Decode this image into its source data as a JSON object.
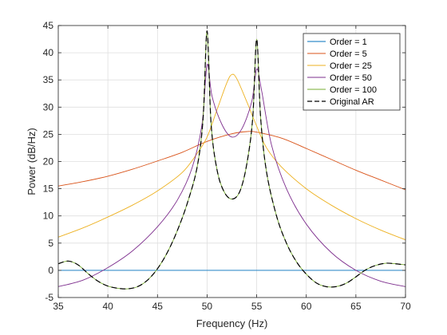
{
  "chart_data": {
    "type": "line",
    "xlabel": "Frequency (Hz)",
    "ylabel": "Power (dB/Hz)",
    "xlim": [
      35,
      70
    ],
    "ylim": [
      -5,
      45
    ],
    "xticks": [
      35,
      40,
      45,
      50,
      55,
      60,
      65,
      70
    ],
    "yticks": [
      -5,
      0,
      5,
      10,
      15,
      20,
      25,
      30,
      35,
      40,
      45
    ],
    "grid": true,
    "legend_position": "top-right",
    "series": [
      {
        "name": "Order = 1",
        "color": "#0072BD",
        "dashed": false,
        "x": [
          35,
          70
        ],
        "y": [
          0,
          0
        ]
      },
      {
        "name": "Order = 5",
        "color": "#D95319",
        "dashed": false,
        "x": [
          35,
          37.5,
          40,
          42.5,
          45,
          47.5,
          50,
          52.5,
          54,
          55,
          57.5,
          60,
          62.5,
          65,
          67.5,
          70
        ],
        "y": [
          15.5,
          16.3,
          17.3,
          18.6,
          20.1,
          21.7,
          23.7,
          25.1,
          25.5,
          25.4,
          24.3,
          22.4,
          20.4,
          18.4,
          16.6,
          14.8
        ]
      },
      {
        "name": "Order = 25",
        "color": "#EDB120",
        "dashed": false,
        "x": [
          35,
          37.5,
          40,
          42.5,
          45,
          47.5,
          49,
          50,
          51,
          52,
          52.5,
          53,
          54,
          55,
          56,
          57.5,
          60,
          62.5,
          65,
          67.5,
          70
        ],
        "y": [
          6.1,
          7.8,
          9.8,
          12.0,
          14.6,
          18.0,
          21.5,
          24.5,
          29.5,
          34.5,
          36.0,
          35.2,
          31.0,
          26.5,
          22.5,
          19.0,
          15.0,
          12.0,
          9.5,
          7.4,
          5.6
        ]
      },
      {
        "name": "Order = 50",
        "color": "#7E2F8E",
        "dashed": false,
        "x": [
          35,
          37.5,
          40,
          42.5,
          45,
          47,
          48.5,
          49.5,
          50,
          50.5,
          51.5,
          52.5,
          53.5,
          54.5,
          55,
          55.5,
          56.5,
          58,
          60,
          62.5,
          65,
          67.5,
          70
        ],
        "y": [
          -3.0,
          -1.8,
          0.5,
          3.6,
          8.0,
          12.9,
          18.9,
          27.0,
          37.8,
          32.0,
          26.8,
          24.5,
          26.0,
          31.0,
          37.0,
          33.0,
          23.0,
          15.0,
          8.5,
          3.3,
          0.0,
          -2.0,
          -3.0
        ]
      },
      {
        "name": "Order = 100",
        "color": "#77AC30",
        "dashed": false,
        "x": [
          35,
          36,
          37,
          38,
          39,
          40,
          41,
          42,
          43,
          44,
          45,
          46,
          47,
          48,
          49,
          49.6,
          50,
          50.4,
          51,
          51.7,
          52.5,
          53.3,
          54,
          54.6,
          55,
          55.4,
          56,
          57,
          58,
          59,
          60,
          61,
          62,
          63,
          64,
          65,
          66,
          67,
          68,
          69,
          70
        ],
        "y": [
          1.2,
          1.7,
          1.0,
          -0.6,
          -2.0,
          -2.9,
          -3.3,
          -3.4,
          -3.0,
          -1.8,
          0.3,
          3.3,
          7.3,
          12.3,
          19.0,
          28.0,
          44.0,
          27.0,
          18.5,
          14.5,
          13.1,
          14.5,
          19.5,
          28.0,
          42.5,
          28.0,
          18.0,
          10.0,
          5.0,
          1.6,
          -0.7,
          -2.3,
          -3.0,
          -3.0,
          -2.4,
          -1.2,
          0.1,
          0.9,
          1.3,
          1.2,
          1.0
        ]
      },
      {
        "name": "Original AR",
        "color": "#000000",
        "dashed": true,
        "x": [
          35,
          36,
          37,
          38,
          39,
          40,
          41,
          42,
          43,
          44,
          45,
          46,
          47,
          48,
          49,
          49.6,
          50,
          50.4,
          51,
          51.7,
          52.5,
          53.3,
          54,
          54.6,
          55,
          55.4,
          56,
          57,
          58,
          59,
          60,
          61,
          62,
          63,
          64,
          65,
          66,
          67,
          68,
          69,
          70
        ],
        "y": [
          1.2,
          1.7,
          1.0,
          -0.6,
          -2.0,
          -2.9,
          -3.3,
          -3.4,
          -3.0,
          -1.8,
          0.3,
          3.3,
          7.3,
          12.3,
          19.0,
          28.0,
          44.0,
          27.0,
          18.5,
          14.5,
          13.1,
          14.5,
          19.5,
          28.0,
          42.5,
          28.0,
          18.0,
          10.0,
          5.0,
          1.6,
          -0.7,
          -2.3,
          -3.0,
          -3.0,
          -2.4,
          -1.2,
          0.1,
          0.9,
          1.3,
          1.2,
          1.0
        ]
      }
    ]
  }
}
